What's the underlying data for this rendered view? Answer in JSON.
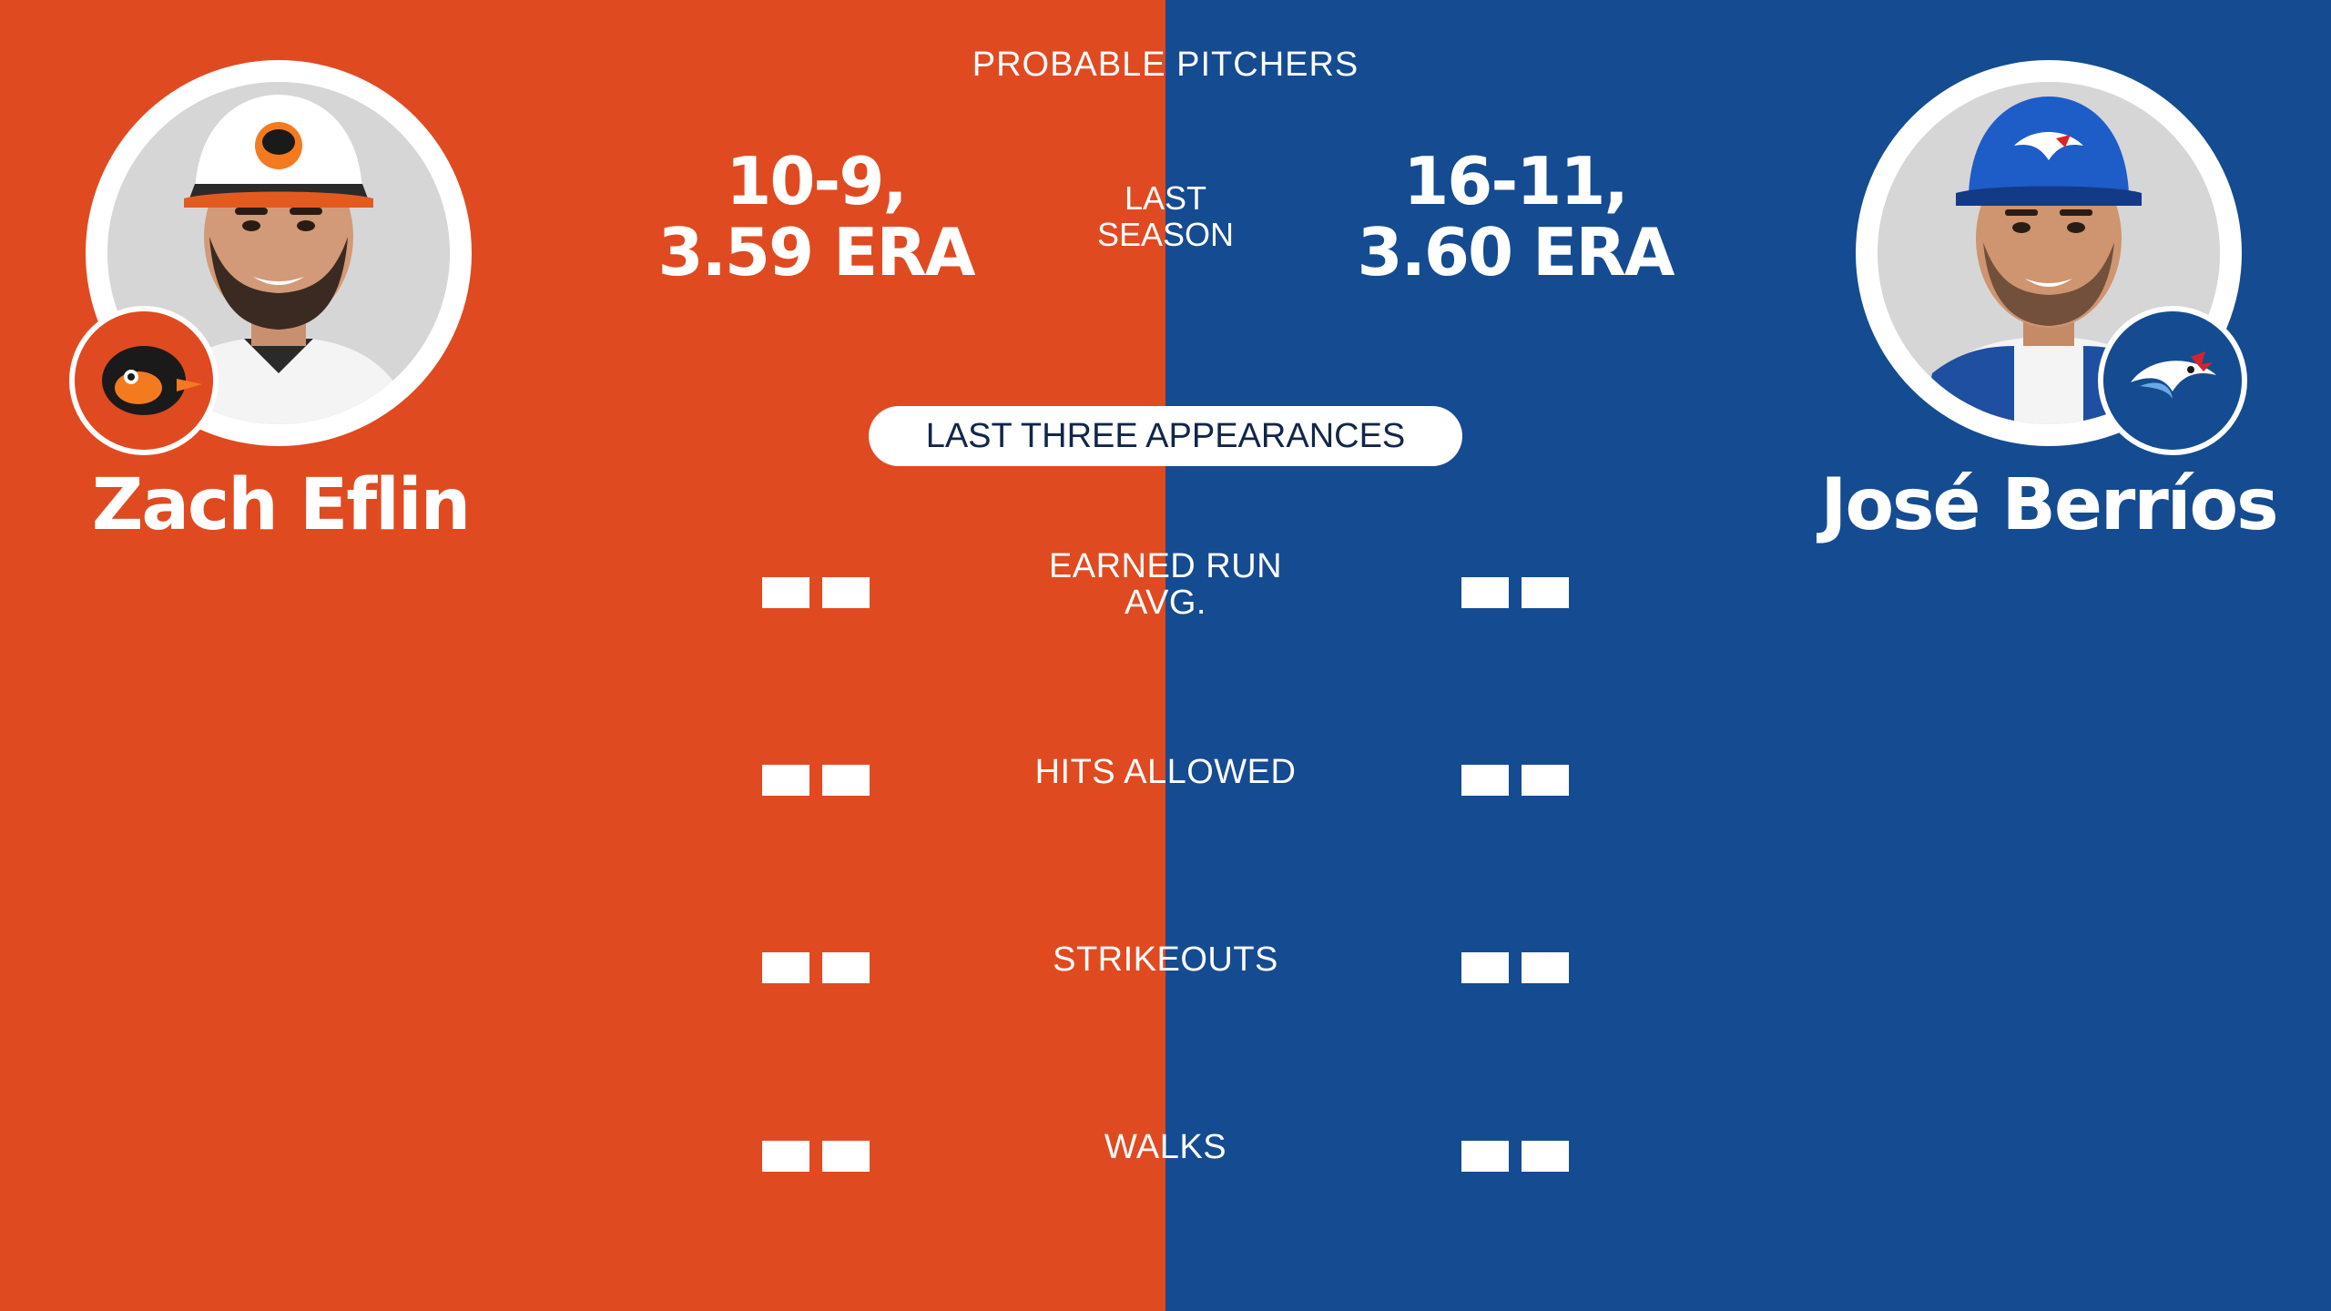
{
  "header": {
    "title": "PROBABLE PITCHERS"
  },
  "colors": {
    "left_bg": "#E04A21",
    "right_bg": "#154B90",
    "pill_text": "#12264A"
  },
  "center": {
    "last_season": [
      "LAST",
      "SEASON"
    ],
    "pill_label": "LAST THREE APPEARANCES",
    "stats": [
      {
        "label": [
          "EARNED RUN",
          "AVG."
        ]
      },
      {
        "label": [
          "HITS ALLOWED"
        ]
      },
      {
        "label": [
          "STRIKEOUTS"
        ]
      },
      {
        "label": [
          "WALKS"
        ]
      }
    ]
  },
  "left_player": {
    "name": "Zach Eflin",
    "record": [
      "10-9,",
      "3.59 ERA"
    ],
    "team_logo": "orioles-logo",
    "photo": "player-headshot"
  },
  "right_player": {
    "name": "José Berríos",
    "record": [
      "16-11,",
      "3.60 ERA"
    ],
    "team_logo": "blue-jays-logo",
    "photo": "player-headshot"
  }
}
